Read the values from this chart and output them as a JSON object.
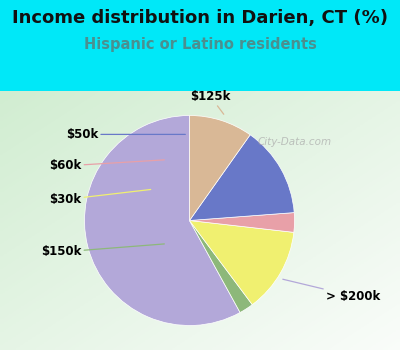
{
  "title": "Income distribution in Darien, CT (%)",
  "subtitle": "Hispanic or Latino residents",
  "watermark": "© City-Data.com",
  "slices": [
    {
      "label": "> $200k",
      "value": 58.0,
      "color": "#b3a8d9"
    },
    {
      "label": "$150k",
      "value": 2.2,
      "color": "#8db87a"
    },
    {
      "label": "$30k",
      "value": 13.0,
      "color": "#f0f070"
    },
    {
      "label": "$60k",
      "value": 3.0,
      "color": "#e8a0a8"
    },
    {
      "label": "$50k",
      "value": 14.0,
      "color": "#6878c8"
    },
    {
      "label": "$125k",
      "value": 9.8,
      "color": "#d9b896"
    }
  ],
  "background_top": "#00e8f8",
  "title_color": "#111111",
  "subtitle_color": "#4a9090",
  "label_fontsize": 8.5,
  "title_fontsize": 13,
  "subtitle_fontsize": 10.5,
  "startangle": 90
}
